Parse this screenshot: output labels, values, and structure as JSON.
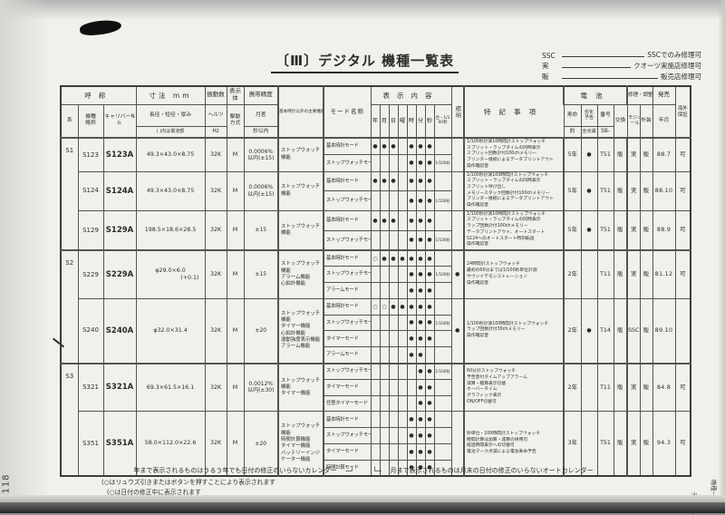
{
  "page": {
    "title": "〔Ⅲ〕デジタル 機種一覧表",
    "page_number": "118",
    "side_tab": [
      "デジタル",
      "機種一覧表"
    ],
    "legend": [
      {
        "code": "SSC",
        "desc": "SSCでのみ修理可"
      },
      {
        "code": "実",
        "desc": "クオーツ実施店修理可"
      },
      {
        "code": "販",
        "desc": "販売店修理可"
      }
    ],
    "footnotes": {
      "year": "年まで表示されるものはうるう年でも日付の修正のいらないカレンダー",
      "conn_left": "─┘",
      "conn_right": "└─",
      "month": "月まで表示されるものは月末の日付の修正のいらないオートカレンダー",
      "circle1": "(○はリュウズ引きまたはボタンを押すことにより表示されます",
      "circle2": "(○は日付の修正中に表示されます"
    }
  },
  "table": {
    "headers": {
      "name_group": "呼称",
      "series": "系",
      "model": "機種略称",
      "caliber": "キャリバーNo.",
      "size": "寸法 mm",
      "size_sub1": "長径・短径・厚み",
      "size_sub2": "( )内は電池部",
      "freq": "振動数",
      "freq_sub1": "ヘルツ",
      "freq_sub2": "Hz",
      "display": "表示体",
      "drive": "駆動方式",
      "acc": "携帯精度",
      "acc_sub1": "月差",
      "acc_sub2": "秒以内",
      "func": "基本時計以外の主要機能",
      "mode": "モード名称",
      "content": "表示内容",
      "light": "照明",
      "notes": "特記事項",
      "batt": "電池",
      "batt_life": "寿命",
      "batt_life2": "約",
      "batt_warn": "劣化予告",
      "batt_warn2": "全点滅",
      "batt_no": "番号",
      "batt_no2": "SB-",
      "batt_ex": "交換",
      "repair": "修理・調整",
      "rep_mod": "モジュール",
      "rep_ext": "外装",
      "release": "発売",
      "release_sub": "年月",
      "overseas": "海外保証"
    },
    "display_cols": [
      "年",
      "月",
      "日",
      "曜",
      "時",
      "分",
      "秒",
      "合・1/100秒"
    ],
    "groups": [
      {
        "series": "S1",
        "models": [
          {
            "name": "S123",
            "caliber": "S123A",
            "size_lines": [
              "49.3×43.0×8.75"
            ],
            "hz": "32K",
            "drive": "M",
            "acc_lines": [
              "0.0006%",
              "以内(±15)"
            ],
            "functions": [
              "ストップウォッチ機能"
            ],
            "modes": [
              {
                "label": "基本時計モード",
                "cells": [
                  "●",
                  "●",
                  "●",
                  "",
                  "●",
                  "●",
                  "●",
                  ""
                ]
              },
              {
                "label": "ストップウォッチモード",
                "cells": [
                  "",
                  "",
                  "",
                  "",
                  "●",
                  "●",
                  "●",
                  "1/100秒"
                ]
              }
            ],
            "light": "",
            "notes": [
              "1/100秒計測10時間計ストップウォッチ",
              "スプリット・ラップタイムの同時表示",
              "スプリット回数計付100chメモリー",
              "プリンター接続によるデータプリントアウト",
              "操作確認音"
            ],
            "battery_life": "5年",
            "battery_warn": "●",
            "battery_no": "T51",
            "battery_ex": "販",
            "repair_module": "実",
            "repair_ext": "販",
            "release": "88.7",
            "overseas": "可"
          },
          {
            "name": "S124",
            "caliber": "S124A",
            "size_lines": [
              "49.3×43.0×8.75"
            ],
            "hz": "32K",
            "drive": "M",
            "acc_lines": [
              "0.0006%",
              "以内(±15)"
            ],
            "functions": [
              "ストップウォッチ機能"
            ],
            "modes": [
              {
                "label": "基本時計モード",
                "cells": [
                  "●",
                  "●",
                  "●",
                  "",
                  "●",
                  "●",
                  "●",
                  ""
                ]
              },
              {
                "label": "ストップウォッチモード",
                "cells": [
                  "",
                  "",
                  "",
                  "",
                  "●",
                  "●",
                  "●",
                  "1/100秒"
                ]
              }
            ],
            "light": "",
            "notes": [
              "1/100秒計測100時間計ストップウォッチ",
              "スプリット・ラップタイムの同時表示",
              "スプリット呼び出し",
              "メモリースタック回数計付100chメモリー",
              "プリンター接続によるデータプリントアウト",
              "操作確認音"
            ],
            "battery_life": "5年",
            "battery_warn": "●",
            "battery_no": "T51",
            "battery_ex": "販",
            "repair_module": "実",
            "repair_ext": "販",
            "release": "88.10",
            "overseas": "可"
          },
          {
            "name": "S129",
            "caliber": "S129A",
            "size_lines": [
              "198.5×18.6×28.5"
            ],
            "hz": "32K",
            "drive": "M",
            "acc_lines": [
              "±15"
            ],
            "functions": [
              "ストップウォッチ機能"
            ],
            "modes": [
              {
                "label": "基本時計モード",
                "cells": [
                  "●",
                  "●",
                  "●",
                  "",
                  "●",
                  "●",
                  "●",
                  ""
                ]
              },
              {
                "label": "ストップウォッチモード",
                "cells": [
                  "",
                  "",
                  "",
                  "",
                  "●",
                  "●",
                  "●",
                  "1/100秒"
                ]
              }
            ],
            "light": "",
            "notes": [
              "1/100秒計測10時間計ストップウォッチ",
              "スプリット・ラップタイムの同時表示",
              "ラップ回数計付100chメモリー",
              "データプリントアウト、オートスタート",
              "S124へのオートスタート時刻転送",
              "操作確認音"
            ],
            "battery_life": "5年",
            "battery_warn": "●",
            "battery_no": "T51",
            "battery_ex": "販",
            "repair_module": "実",
            "repair_ext": "販",
            "release": "88.9",
            "overseas": "可"
          }
        ]
      },
      {
        "series": "S2",
        "models": [
          {
            "name": "S229",
            "caliber": "S229A",
            "size_lines": [
              "φ29.0×6.0",
              "(+0.1)"
            ],
            "hz": "32K",
            "drive": "M",
            "acc_lines": [
              "±15"
            ],
            "functions": [
              "ストップウォッチ機能",
              "アラーム機能",
              "心拍計機能"
            ],
            "modes": [
              {
                "label": "基本時計モード",
                "cells": [
                  "○",
                  "●",
                  "●",
                  "●",
                  "●",
                  "●",
                  "●",
                  ""
                ]
              },
              {
                "label": "ストップウォッチモード",
                "cells": [
                  "",
                  "",
                  "",
                  "",
                  "●",
                  "●",
                  "●",
                  "1/100秒"
                ]
              },
              {
                "label": "アラームモード",
                "cells": [
                  "",
                  "",
                  "",
                  "",
                  "●",
                  "●",
                  "●",
                  ""
                ]
              }
            ],
            "light": "●",
            "notes": [
              "24時間計ストップウォッチ",
              "最初の60分までは1/100秒単位計測",
              "サウンドデモンストレーション",
              "操作確認音"
            ],
            "battery_life": "2年",
            "battery_warn": "",
            "battery_no": "T11",
            "battery_ex": "販",
            "repair_module": "実",
            "repair_ext": "販",
            "release": "81.12",
            "overseas": "可"
          },
          {
            "name": "S240",
            "caliber": "S240A",
            "size_lines": [
              "φ32.0×31.4"
            ],
            "hz": "32K",
            "drive": "M",
            "acc_lines": [
              "±20"
            ],
            "functions": [
              "ストップウォッチ機能",
              "タイマー機能",
              "心拍計機能",
              "運動強度表示機能",
              "アラーム機能"
            ],
            "modes": [
              {
                "label": "基本時計モード",
                "cells": [
                  "○",
                  "○",
                  "●",
                  "●",
                  "●",
                  "●",
                  "●",
                  ""
                ]
              },
              {
                "label": "ストップウォッチモード",
                "cells": [
                  "",
                  "",
                  "",
                  "",
                  "●",
                  "●",
                  "●",
                  "1/100秒"
                ]
              },
              {
                "label": "タイマーモード",
                "cells": [
                  "",
                  "",
                  "",
                  "",
                  "●",
                  "●",
                  "●",
                  ""
                ]
              },
              {
                "label": "アラームモード",
                "cells": [
                  "",
                  "",
                  "",
                  "",
                  "●",
                  "●",
                  "",
                  ""
                ]
              }
            ],
            "light": "●",
            "notes": [
              "1/100秒計測100時間計ストップウォッチ",
              "ラップ回数計付30chメモリー",
              "操作確認音"
            ],
            "battery_life": "2年",
            "battery_warn": "●",
            "battery_no": "T14",
            "battery_ex": "販",
            "repair_module": "SSC",
            "repair_ext": "販",
            "release": "89.10",
            "overseas": ""
          }
        ]
      },
      {
        "series": "S3",
        "models": [
          {
            "name": "S321",
            "caliber": "S321A",
            "size_lines": [
              "69.3×61.5×16.1"
            ],
            "hz": "32K",
            "drive": "M",
            "acc_lines": [
              "0.0012%",
              "以内(±30)"
            ],
            "functions": [
              "ストップウォッチ機能",
              "タイマー機能"
            ],
            "modes": [
              {
                "label": "ストップウォッチモード",
                "cells": [
                  "",
                  "",
                  "",
                  "",
                  "",
                  "●",
                  "●",
                  "1/100秒"
                ]
              },
              {
                "label": "タイマーモード",
                "cells": [
                  "",
                  "",
                  "",
                  "",
                  "",
                  "●",
                  "●",
                  ""
                ]
              },
              {
                "label": "任意タイマーモード",
                "cells": [
                  "",
                  "",
                  "",
                  "",
                  "",
                  "●",
                  "●",
                  ""
                ]
              }
            ],
            "light": "",
            "notes": [
              "60分計ストップウォッチ",
              "予告音付タイムアップアラーム",
              "減算・積算表示切替",
              "オーバータイム",
              "グラフィック表示",
              "ON/OFF切替可"
            ],
            "battery_life": "2年",
            "battery_warn": "",
            "battery_no": "T11",
            "battery_ex": "販",
            "repair_module": "実",
            "repair_ext": "販",
            "release": "84.8",
            "overseas": "可"
          },
          {
            "name": "S351",
            "caliber": "S351A",
            "size_lines": [
              "58.0×112.0×22.6"
            ],
            "hz": "32K",
            "drive": "M",
            "acc_lines": [
              "±20"
            ],
            "functions": [
              "ストップウォッチ機能",
              "時間計算機能",
              "タイマー機能",
              "バッテリーインジケーター機能"
            ],
            "modes": [
              {
                "label": "基本時計モード",
                "cells": [
                  "",
                  "",
                  "",
                  "",
                  "●",
                  "●",
                  "●",
                  ""
                ]
              },
              {
                "label": "ストップウォッチモード",
                "cells": [
                  "",
                  "",
                  "",
                  "",
                  "●",
                  "●",
                  "●",
                  ""
                ]
              },
              {
                "label": "タイマーモード",
                "cells": [
                  "",
                  "",
                  "",
                  "",
                  "●",
                  "●",
                  "●",
                  ""
                ]
              },
              {
                "label": "時間計算モード",
                "cells": [
                  "",
                  "",
                  "",
                  "",
                  "●",
                  "●",
                  "●",
                  ""
                ]
              }
            ],
            "light": "",
            "notes": [
              "秒単位・100時間計ストップウォッチ",
              "時間計算は加算・減算の併用可",
              "経過時間表示への切替可",
              "電池マーク点滅による電池寿命予告"
            ],
            "battery_life": "3年",
            "battery_warn": "",
            "battery_no": "T51",
            "battery_ex": "販",
            "repair_module": "実",
            "repair_ext": "販",
            "release": "94.3",
            "overseas": "可"
          }
        ]
      }
    ]
  }
}
